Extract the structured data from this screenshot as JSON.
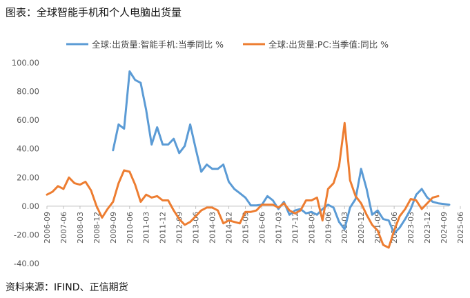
{
  "title": "图表：全球智能手机和个人电脑出货量",
  "source": "资料来源：IFIND、正信期货",
  "chart_data": {
    "type": "line",
    "legend_position": "top",
    "grid": false,
    "ylim": [
      -40,
      100
    ],
    "y_ticks": [
      "100.00",
      "80.00",
      "60.00",
      "40.00",
      "20.00",
      "0.00",
      "-20.00",
      "-40.00"
    ],
    "y_tick_values": [
      100,
      80,
      60,
      40,
      20,
      0,
      -20,
      -40
    ],
    "x_ticks": [
      "2006-09",
      "2007-06",
      "2008-03",
      "2008-12",
      "2009-09",
      "2010-06",
      "2011-03",
      "2011-12",
      "2012-09",
      "2013-06",
      "2014-03",
      "2014-12",
      "2015-09",
      "2016-06",
      "2017-03",
      "2017-12",
      "2018-09",
      "2019-06",
      "2020-03",
      "2020-12",
      "2021-09",
      "2022-06",
      "2023-03",
      "2023-12",
      "2024-09",
      "2025-06"
    ],
    "series": [
      {
        "name": "全球:出货量:智能手机:当季同比 %",
        "color": "#5B9BD5",
        "values": [
          null,
          null,
          null,
          null,
          null,
          null,
          null,
          null,
          null,
          null,
          null,
          null,
          39,
          57,
          54,
          94,
          88,
          86,
          67,
          43,
          55,
          43,
          43,
          47,
          37,
          42,
          57,
          40,
          24,
          29,
          26,
          26,
          29,
          17,
          12,
          9,
          6,
          0.5,
          0.5,
          1,
          7,
          4,
          -2,
          3,
          -6,
          -3,
          -2,
          -5,
          -4,
          -6,
          -2,
          1,
          -1,
          -11,
          -16,
          -1,
          5,
          26,
          12,
          -6,
          -3,
          -9,
          -10,
          -19,
          -15,
          -9,
          -2,
          8,
          12,
          6,
          3,
          2,
          1.5,
          1
        ]
      },
      {
        "name": "全球:出货量:PC:当季值:同比 %",
        "color": "#ED7D31",
        "values": [
          8,
          10,
          14,
          12,
          20,
          16,
          15,
          17,
          11,
          0,
          -8,
          -2,
          3,
          16,
          25,
          24,
          15,
          3,
          8,
          6,
          7,
          4,
          4,
          -3,
          -9,
          -13,
          -11,
          -7,
          -3,
          -1,
          -1,
          -3,
          -12,
          -10,
          -11,
          -12,
          -4,
          -4,
          -3,
          1,
          1,
          1,
          -1,
          2,
          -3,
          -5,
          -3,
          4,
          4,
          6,
          -10,
          12,
          16,
          28,
          58,
          18,
          7,
          2,
          -6,
          -13,
          -17,
          -27,
          -29,
          -17,
          -7,
          -2,
          5,
          4,
          -2,
          2,
          6,
          7,
          null,
          null
        ]
      }
    ]
  }
}
